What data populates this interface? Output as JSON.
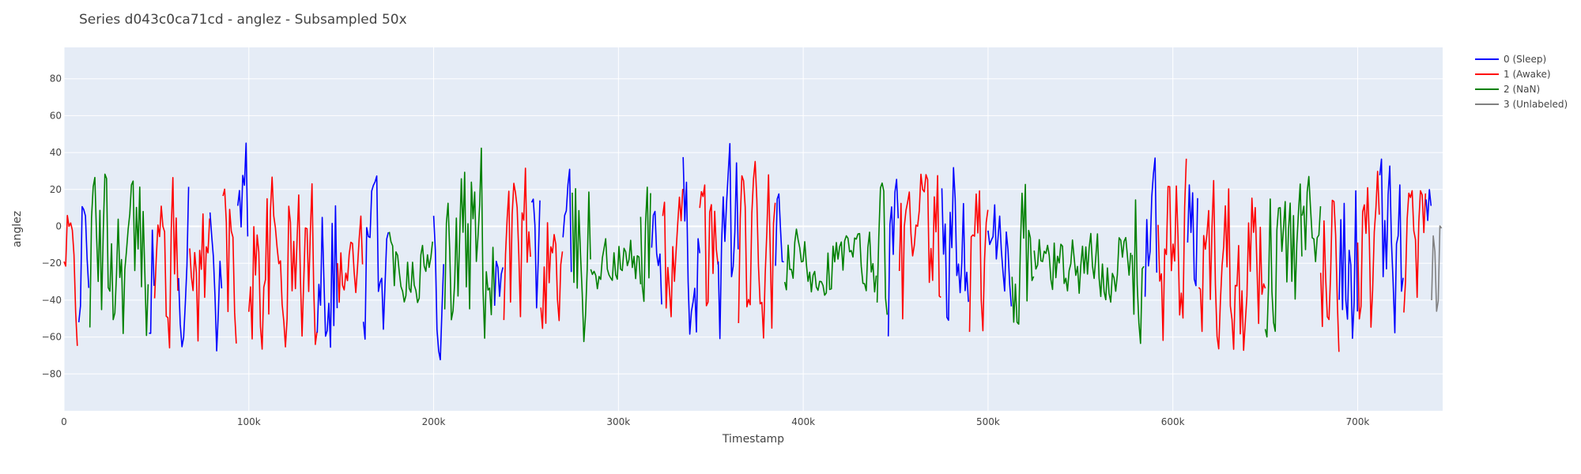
{
  "chart_data": {
    "type": "line",
    "title": "Series d043c0ca71cd - anglez - Subsampled 50x",
    "xlabel": "Timestamp",
    "ylabel": "anglez",
    "xlim": [
      0,
      746000
    ],
    "ylim": [
      -100,
      97
    ],
    "x_ticks": [
      0,
      100000,
      200000,
      300000,
      400000,
      500000,
      600000,
      700000
    ],
    "x_tick_labels": [
      "0",
      "100k",
      "200k",
      "300k",
      "400k",
      "500k",
      "600k",
      "700k"
    ],
    "y_ticks": [
      -80,
      -60,
      -40,
      -20,
      0,
      20,
      40,
      60,
      80
    ],
    "y_tick_labels": [
      "−80",
      "−60",
      "−40",
      "−20",
      "0",
      "20",
      "40",
      "60",
      "80"
    ],
    "grid": true,
    "legend_position": "right",
    "series": [
      {
        "name": "0 (Sleep)",
        "color": "#0000ff"
      },
      {
        "name": "1 (Awake)",
        "color": "#ff0000"
      },
      {
        "name": "2 (NaN)",
        "color": "#008000"
      },
      {
        "name": "3 (Unlabeled)",
        "color": "#808080"
      }
    ],
    "segments": [
      {
        "label": "1 (Awake)",
        "x": [
          0,
          8000
        ],
        "center": -25,
        "amplitude": 55
      },
      {
        "label": "0 (Sleep)",
        "x": [
          8000,
          14000
        ],
        "center": -15,
        "amplitude": 55
      },
      {
        "label": "2 (NaN)",
        "x": [
          14000,
          46000
        ],
        "center": -15,
        "amplitude": 65
      },
      {
        "label": "0 (Sleep)",
        "x": [
          46000,
          49000
        ],
        "center": -20,
        "amplitude": 55
      },
      {
        "label": "1 (Awake)",
        "x": [
          49000,
          62000
        ],
        "center": -20,
        "amplitude": 65
      },
      {
        "label": "0 (Sleep)",
        "x": [
          62000,
          68000
        ],
        "center": -15,
        "amplitude": 60
      },
      {
        "label": "1 (Awake)",
        "x": [
          68000,
          79000
        ],
        "center": -20,
        "amplitude": 65
      },
      {
        "label": "0 (Sleep)",
        "x": [
          79000,
          86000
        ],
        "center": -10,
        "amplitude": 75
      },
      {
        "label": "1 (Awake)",
        "x": [
          86000,
          94000
        ],
        "center": -20,
        "amplitude": 65
      },
      {
        "label": "0 (Sleep)",
        "x": [
          94000,
          100000
        ],
        "center": -5,
        "amplitude": 85
      },
      {
        "label": "1 (Awake)",
        "x": [
          100000,
          137000
        ],
        "center": -20,
        "amplitude": 65
      },
      {
        "label": "0 (Sleep)",
        "x": [
          137000,
          148000
        ],
        "center": -10,
        "amplitude": 75
      },
      {
        "label": "1 (Awake)",
        "x": [
          148000,
          162000
        ],
        "center": -25,
        "amplitude": 45
      },
      {
        "label": "0 (Sleep)",
        "x": [
          162000,
          176000
        ],
        "center": -15,
        "amplitude": 60
      },
      {
        "label": "2 (NaN)",
        "x": [
          176000,
          200000
        ],
        "center": -20,
        "amplitude": 25
      },
      {
        "label": "0 (Sleep)",
        "x": [
          200000,
          206000
        ],
        "center": -10,
        "amplitude": 70
      },
      {
        "label": "2 (NaN)",
        "x": [
          206000,
          233000
        ],
        "center": -10,
        "amplitude": 75
      },
      {
        "label": "0 (Sleep)",
        "x": [
          233000,
          238000
        ],
        "center": -15,
        "amplitude": 60
      },
      {
        "label": "1 (Awake)",
        "x": [
          238000,
          253000
        ],
        "center": -15,
        "amplitude": 65
      },
      {
        "label": "0 (Sleep)",
        "x": [
          253000,
          258000
        ],
        "center": -20,
        "amplitude": 55
      },
      {
        "label": "1 (Awake)",
        "x": [
          258000,
          270000
        ],
        "center": -20,
        "amplitude": 60
      },
      {
        "label": "0 (Sleep)",
        "x": [
          270000,
          275000
        ],
        "center": -15,
        "amplitude": 55
      },
      {
        "label": "2 (NaN)",
        "x": [
          275000,
          285000
        ],
        "center": -15,
        "amplitude": 65
      },
      {
        "label": "2 (NaN)",
        "x": [
          285000,
          312000
        ],
        "center": -20,
        "amplitude": 20
      },
      {
        "label": "2 (NaN)",
        "x": [
          312000,
          318000
        ],
        "center": -10,
        "amplitude": 55
      },
      {
        "label": "0 (Sleep)",
        "x": [
          318000,
          324000
        ],
        "center": -5,
        "amplitude": 70
      },
      {
        "label": "1 (Awake)",
        "x": [
          324000,
          335000
        ],
        "center": -20,
        "amplitude": 60
      },
      {
        "label": "0 (Sleep)",
        "x": [
          335000,
          344000
        ],
        "center": -15,
        "amplitude": 65
      },
      {
        "label": "1 (Awake)",
        "x": [
          344000,
          354000
        ],
        "center": -20,
        "amplitude": 60
      },
      {
        "label": "0 (Sleep)",
        "x": [
          354000,
          365000
        ],
        "center": -5,
        "amplitude": 80
      },
      {
        "label": "1 (Awake)",
        "x": [
          365000,
          385000
        ],
        "center": -20,
        "amplitude": 65
      },
      {
        "label": "0 (Sleep)",
        "x": [
          385000,
          390000
        ],
        "center": -20,
        "amplitude": 55
      },
      {
        "label": "2 (NaN)",
        "x": [
          390000,
          440000
        ],
        "center": -20,
        "amplitude": 25
      },
      {
        "label": "2 (NaN)",
        "x": [
          440000,
          446000
        ],
        "center": -10,
        "amplitude": 65
      },
      {
        "label": "0 (Sleep)",
        "x": [
          446000,
          452000
        ],
        "center": -15,
        "amplitude": 60
      },
      {
        "label": "1 (Awake)",
        "x": [
          452000,
          475000
        ],
        "center": -20,
        "amplitude": 65
      },
      {
        "label": "0 (Sleep)",
        "x": [
          475000,
          490000
        ],
        "center": -10,
        "amplitude": 70
      },
      {
        "label": "1 (Awake)",
        "x": [
          490000,
          500000
        ],
        "center": -20,
        "amplitude": 65
      },
      {
        "label": "0 (Sleep)",
        "x": [
          500000,
          513000
        ],
        "center": -15,
        "amplitude": 60
      },
      {
        "label": "2 (NaN)",
        "x": [
          513000,
          525000
        ],
        "center": -15,
        "amplitude": 60
      },
      {
        "label": "2 (NaN)",
        "x": [
          525000,
          578000
        ],
        "center": -20,
        "amplitude": 25
      },
      {
        "label": "2 (NaN)",
        "x": [
          578000,
          585000
        ],
        "center": -15,
        "amplitude": 65
      },
      {
        "label": "0 (Sleep)",
        "x": [
          585000,
          592000
        ],
        "center": -15,
        "amplitude": 60
      },
      {
        "label": "1 (Awake)",
        "x": [
          592000,
          608000
        ],
        "center": -15,
        "amplitude": 70
      },
      {
        "label": "0 (Sleep)",
        "x": [
          608000,
          614000
        ],
        "center": -15,
        "amplitude": 60
      },
      {
        "label": "1 (Awake)",
        "x": [
          614000,
          650000
        ],
        "center": -15,
        "amplitude": 70
      },
      {
        "label": "2 (NaN)",
        "x": [
          650000,
          670000
        ],
        "center": -15,
        "amplitude": 55
      },
      {
        "label": "2 (NaN)",
        "x": [
          670000,
          680000
        ],
        "center": -15,
        "amplitude": 55
      },
      {
        "label": "1 (Awake)",
        "x": [
          680000,
          690000
        ],
        "center": -15,
        "amplitude": 70
      },
      {
        "label": "0 (Sleep)",
        "x": [
          690000,
          700000
        ],
        "center": -15,
        "amplitude": 70
      },
      {
        "label": "1 (Awake)",
        "x": [
          700000,
          712000
        ],
        "center": -20,
        "amplitude": 65
      },
      {
        "label": "0 (Sleep)",
        "x": [
          712000,
          725000
        ],
        "center": -15,
        "amplitude": 60
      },
      {
        "label": "1 (Awake)",
        "x": [
          725000,
          737000
        ],
        "center": -20,
        "amplitude": 55
      },
      {
        "label": "0 (Sleep)",
        "x": [
          737000,
          740000
        ],
        "center": -20,
        "amplitude": 50
      },
      {
        "label": "3 (Unlabeled)",
        "x": [
          740000,
          746000
        ],
        "center": -20,
        "amplitude": 55
      }
    ]
  }
}
